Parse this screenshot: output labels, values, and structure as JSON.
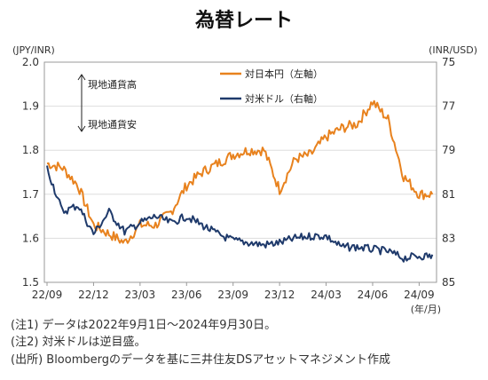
{
  "chart_data": {
    "type": "line",
    "title": "為替レート",
    "left_axis": {
      "unit": "(JPY/INR)",
      "ylim": [
        1.5,
        2.0
      ],
      "ticks": [
        "1.5",
        "1.6",
        "1.7",
        "1.8",
        "1.9",
        "2.0"
      ]
    },
    "right_axis": {
      "unit": "(INR/USD)",
      "ylim": [
        85,
        75
      ],
      "inverted": true,
      "ticks": [
        "75",
        "77",
        "79",
        "81",
        "83",
        "85"
      ]
    },
    "x_axis": {
      "unit": "(年/月)",
      "ticks": [
        "22/09",
        "22/12",
        "23/03",
        "23/06",
        "23/09",
        "23/12",
        "24/03",
        "24/06",
        "24/09"
      ]
    },
    "annotation": {
      "up": "現地通貨高",
      "down": "現地通貨安"
    },
    "series": [
      {
        "name": "対日本円（左軸）",
        "axis": "left",
        "color": "#E8821E",
        "x": [
          "2022-09",
          "2022-10",
          "2022-11",
          "2022-12",
          "2023-01",
          "2023-02",
          "2023-03",
          "2023-04",
          "2023-05",
          "2023-06",
          "2023-07",
          "2023-08",
          "2023-09",
          "2023-10",
          "2023-11",
          "2023-12",
          "2024-01",
          "2024-02",
          "2024-03",
          "2024-04",
          "2024-05",
          "2024-06",
          "2024-07",
          "2024-08",
          "2024-09"
        ],
        "values": [
          1.77,
          1.76,
          1.72,
          1.63,
          1.61,
          1.59,
          1.63,
          1.63,
          1.66,
          1.72,
          1.75,
          1.77,
          1.79,
          1.8,
          1.8,
          1.71,
          1.78,
          1.79,
          1.83,
          1.85,
          1.86,
          1.91,
          1.87,
          1.74,
          1.7
        ]
      },
      {
        "name": "対米ドル（右軸）",
        "axis": "right",
        "color": "#1F3A6B",
        "x": [
          "2022-09",
          "2022-10",
          "2022-11",
          "2022-12",
          "2023-01",
          "2023-02",
          "2023-03",
          "2023-04",
          "2023-05",
          "2023-06",
          "2023-07",
          "2023-08",
          "2023-09",
          "2023-10",
          "2023-11",
          "2023-12",
          "2024-01",
          "2024-02",
          "2024-03",
          "2024-04",
          "2024-05",
          "2024-06",
          "2024-07",
          "2024-08",
          "2024-09"
        ],
        "values": [
          79.8,
          81.8,
          81.5,
          82.8,
          81.8,
          82.7,
          82.3,
          82.0,
          82.3,
          82.0,
          82.4,
          82.8,
          83.1,
          83.2,
          83.3,
          83.2,
          83.0,
          82.9,
          82.9,
          83.4,
          83.4,
          83.5,
          83.6,
          83.9,
          83.8
        ]
      }
    ]
  },
  "notes": [
    "(注1) データは2022年9月1日～2024年9月30日。",
    "(注2) 対米ドルは逆目盛。",
    "(出所) Bloombergのデータを基に三井住友DSアセットマネジメント作成"
  ]
}
